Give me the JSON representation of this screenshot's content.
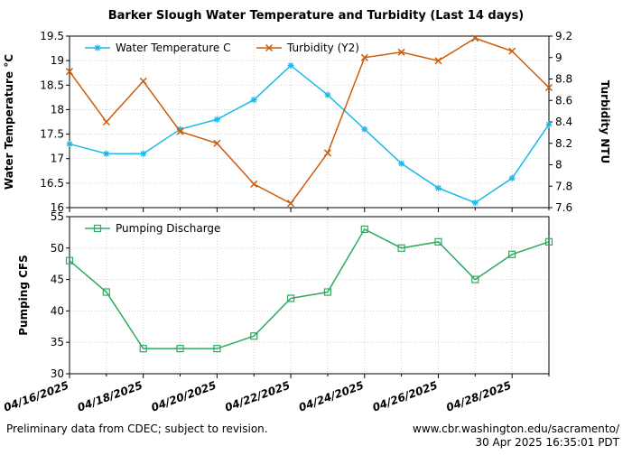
{
  "page": {
    "title": "Barker Slough Water Temperature and Turbidity (Last 14 days)",
    "footer_left": "Preliminary data from CDEC; subject to revision.",
    "footer_right_url": "www.cbr.washington.edu/sacramento/",
    "footer_right_timestamp": "30 Apr 2025 16:35:01 PDT"
  },
  "chart_data": [
    {
      "type": "line",
      "x": [
        "04/16/2025",
        "04/17/2025",
        "04/18/2025",
        "04/19/2025",
        "04/20/2025",
        "04/21/2025",
        "04/22/2025",
        "04/23/2025",
        "04/24/2025",
        "04/25/2025",
        "04/26/2025",
        "04/27/2025",
        "04/28/2025",
        "04/29/2025"
      ],
      "xticks": [
        "04/16/2025",
        "04/18/2025",
        "04/20/2025",
        "04/22/2025",
        "04/24/2025",
        "04/26/2025",
        "04/28/2025"
      ],
      "ylabel": "Water Temperature °C",
      "ylim": [
        16,
        19.5
      ],
      "yticks": [
        16,
        16.5,
        17,
        17.5,
        18,
        18.5,
        19,
        19.5
      ],
      "y2label": "Turbidity NTU",
      "y2lim": [
        7.6,
        9.2
      ],
      "y2ticks": [
        7.6,
        7.8,
        8.0,
        8.2,
        8.4,
        8.6,
        8.8,
        9.0,
        9.2
      ],
      "grid": true,
      "legend": "top-left",
      "series": [
        {
          "name": "Water Temperature C",
          "axis": "y",
          "color": "#1cb8e8",
          "marker": "star",
          "values": [
            17.3,
            17.1,
            17.1,
            17.6,
            17.8,
            18.2,
            18.9,
            18.3,
            17.6,
            16.9,
            16.4,
            16.1,
            16.6,
            17.7
          ]
        },
        {
          "name": "Turbidity (Y2)",
          "axis": "y2",
          "color": "#cc5c0a",
          "marker": "x",
          "values": [
            8.87,
            8.4,
            8.78,
            8.31,
            8.2,
            7.82,
            7.64,
            8.11,
            9.0,
            9.05,
            8.97,
            9.18,
            9.06,
            8.72
          ]
        }
      ]
    },
    {
      "type": "line",
      "x": [
        "04/16/2025",
        "04/17/2025",
        "04/18/2025",
        "04/19/2025",
        "04/20/2025",
        "04/21/2025",
        "04/22/2025",
        "04/23/2025",
        "04/24/2025",
        "04/25/2025",
        "04/26/2025",
        "04/27/2025",
        "04/28/2025",
        "04/29/2025"
      ],
      "xticks": [
        "04/16/2025",
        "04/18/2025",
        "04/20/2025",
        "04/22/2025",
        "04/24/2025",
        "04/26/2025",
        "04/28/2025"
      ],
      "ylabel": "Pumping CFS",
      "ylim": [
        30,
        55
      ],
      "yticks": [
        30,
        35,
        40,
        45,
        50,
        55
      ],
      "grid": true,
      "legend": "top-left",
      "series": [
        {
          "name": "Pumping Discharge",
          "axis": "y",
          "color": "#2eaa60",
          "marker": "square",
          "values": [
            48,
            43,
            34,
            34,
            34,
            36,
            42,
            43,
            53,
            50,
            51,
            45,
            49,
            51
          ]
        }
      ]
    }
  ]
}
